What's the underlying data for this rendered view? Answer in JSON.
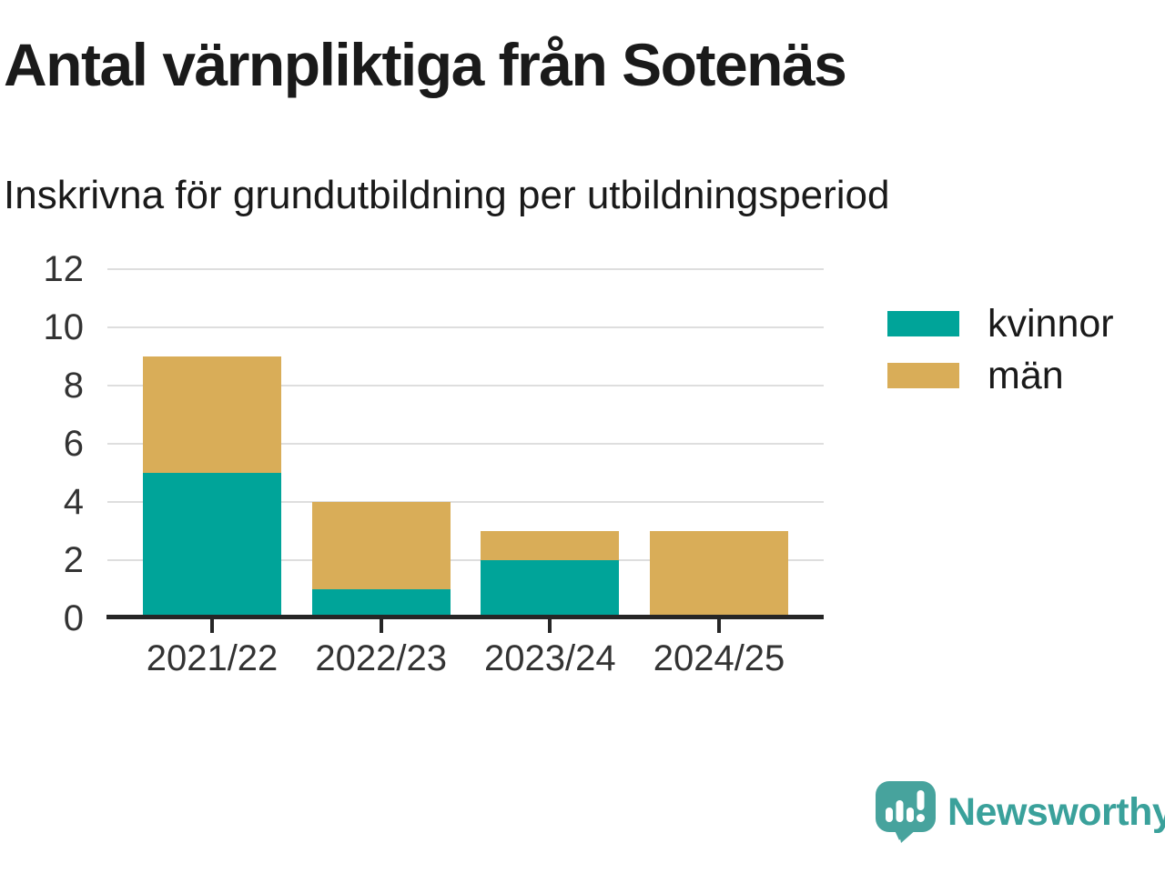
{
  "chart_data": {
    "type": "bar",
    "stacked": true,
    "title": "Antal värnpliktiga från Sotenäs",
    "subtitle": "Inskrivna för grundutbildning per utbildningsperiod",
    "categories": [
      "2021/22",
      "2022/23",
      "2023/24",
      "2024/25"
    ],
    "series": [
      {
        "name": "kvinnor",
        "color": "#00a499",
        "values": [
          5,
          1,
          2,
          0
        ]
      },
      {
        "name": "män",
        "color": "#d9ad58",
        "values": [
          4,
          3,
          1,
          3
        ]
      }
    ],
    "totals": [
      9,
      4,
      3,
      3
    ],
    "xlabel": "",
    "ylabel": "",
    "ylim": [
      0,
      12
    ],
    "yticks": [
      0,
      2,
      4,
      6,
      8,
      10,
      12
    ],
    "grid": true,
    "legend_position": "right",
    "colors": {
      "axis": "#262626",
      "grid": "#dedede",
      "tick_label": "#333333",
      "text": "#1a1a1a"
    }
  },
  "footer": {
    "brand": "Newsworthy",
    "brand_color": "#3aa19b",
    "logo_icon": "newsworthy-speech-bubble-bar-chart-icon",
    "logo_bubble_color": "#47a39d"
  }
}
